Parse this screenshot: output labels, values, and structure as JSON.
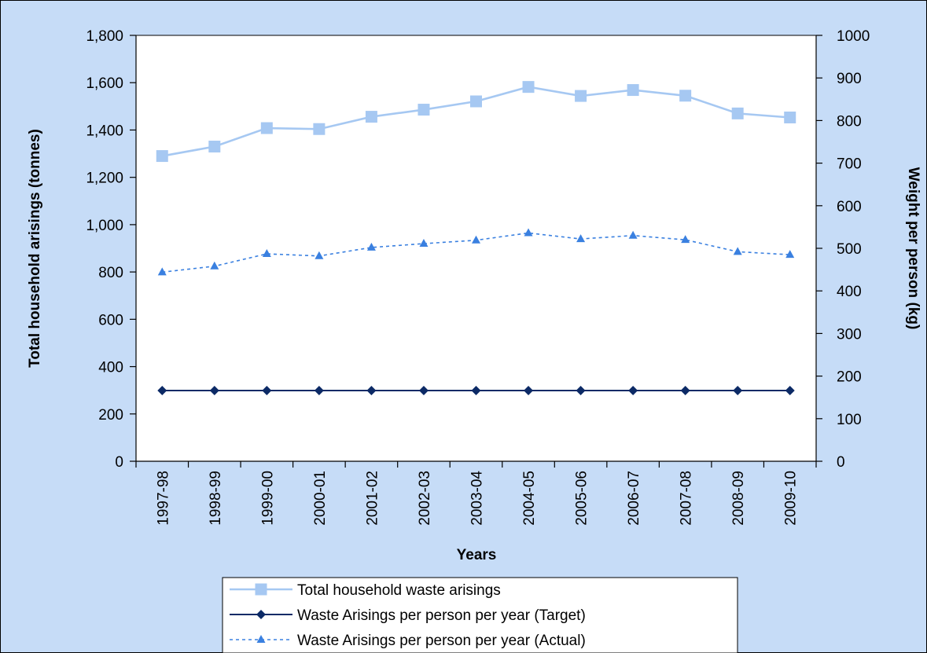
{
  "chart_data": {
    "type": "line",
    "title": "",
    "categories": [
      "1997-98",
      "1998-99",
      "1999-00",
      "2000-01",
      "2001-02",
      "2002-03",
      "2003-04",
      "2004-05",
      "2005-06",
      "2006-07",
      "2007-08",
      "2008-09",
      "2009-10"
    ],
    "xlabel": "Years",
    "ylabel": "Total household arisings (tonnes)",
    "y2label": "Weight per person (kg)",
    "ylim": [
      0,
      1800
    ],
    "y2lim": [
      0,
      1000
    ],
    "yticks": [
      "0",
      "200",
      "400",
      "600",
      "800",
      "1,000",
      "1,200",
      "1,400",
      "1,600",
      "1,800"
    ],
    "y2ticks": [
      "0",
      "100",
      "200",
      "300",
      "400",
      "500",
      "600",
      "700",
      "800",
      "900",
      "1000"
    ],
    "grid": false,
    "legend_position": "bottom",
    "series": [
      {
        "name": "Total household waste arisings",
        "axis": "left",
        "values": [
          1290,
          1330,
          1408,
          1404,
          1456,
          1486,
          1521,
          1582,
          1544,
          1569,
          1545,
          1470,
          1453
        ],
        "color": "#a6c8f2",
        "marker": "square",
        "dash": false
      },
      {
        "name": "Waste Arisings per person per year (Target)",
        "axis": "right",
        "values": [
          166,
          166,
          166,
          166,
          166,
          166,
          166,
          166,
          166,
          166,
          166,
          166,
          166
        ],
        "color": "#0c2a66",
        "marker": "diamond",
        "dash": false
      },
      {
        "name": "Waste Arisings per person per year (Actual)",
        "axis": "right",
        "values": [
          444,
          458,
          487,
          482,
          502,
          511,
          519,
          536,
          522,
          530,
          520,
          492,
          485
        ],
        "color": "#3a80e0",
        "marker": "triangle",
        "dash": true
      }
    ],
    "colors": {
      "background": "#c6dcf7",
      "plot_area": "#ffffff",
      "border": "#000000"
    }
  }
}
